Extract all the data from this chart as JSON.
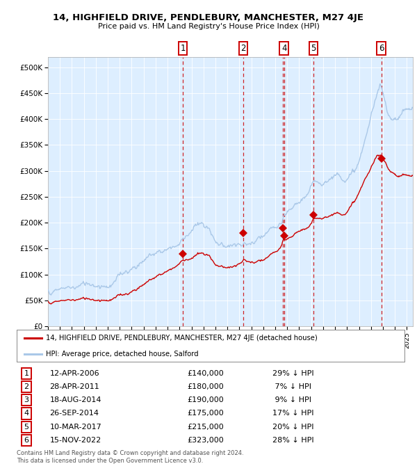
{
  "title": "14, HIGHFIELD DRIVE, PENDLEBURY, MANCHESTER, M27 4JE",
  "subtitle": "Price paid vs. HM Land Registry's House Price Index (HPI)",
  "legend_line1": "14, HIGHFIELD DRIVE, PENDLEBURY, MANCHESTER, M27 4JE (detached house)",
  "legend_line2": "HPI: Average price, detached house, Salford",
  "footer1": "Contains HM Land Registry data © Crown copyright and database right 2024.",
  "footer2": "This data is licensed under the Open Government Licence v3.0.",
  "hpi_color": "#aac8e8",
  "price_color": "#cc0000",
  "marker_color": "#cc0000",
  "vline_color": "#cc0000",
  "background_color": "#ddeeff",
  "table_entries": [
    {
      "num": "1",
      "date": "12-APR-2006",
      "price": "£140,000",
      "hpi": "29% ↓ HPI"
    },
    {
      "num": "2",
      "date": "28-APR-2011",
      "price": "£180,000",
      "hpi": " 7% ↓ HPI"
    },
    {
      "num": "3",
      "date": "18-AUG-2014",
      "price": "£190,000",
      "hpi": " 9% ↓ HPI"
    },
    {
      "num": "4",
      "date": "26-SEP-2014",
      "price": "£175,000",
      "hpi": "17% ↓ HPI"
    },
    {
      "num": "5",
      "date": "10-MAR-2017",
      "price": "£215,000",
      "hpi": "20% ↓ HPI"
    },
    {
      "num": "6",
      "date": "15-NOV-2022",
      "price": "£323,000",
      "hpi": "28% ↓ HPI"
    }
  ],
  "sale_dates_decimal": [
    2006.277,
    2011.322,
    2014.632,
    2014.737,
    2017.191,
    2022.874
  ],
  "sale_prices": [
    140000,
    180000,
    190000,
    175000,
    215000,
    323000
  ],
  "sale_labels": [
    "1",
    "2",
    "3",
    "4",
    "5",
    "6"
  ],
  "show_top_label": [
    true,
    true,
    false,
    true,
    true,
    true
  ],
  "xlim": [
    1995.0,
    2025.5
  ],
  "ylim": [
    0,
    520000
  ],
  "yticks": [
    0,
    50000,
    100000,
    150000,
    200000,
    250000,
    300000,
    350000,
    400000,
    450000,
    500000
  ],
  "ylabels": [
    "£0",
    "£50K",
    "£100K",
    "£150K",
    "£200K",
    "£250K",
    "£300K",
    "£350K",
    "£400K",
    "£450K",
    "£500K"
  ]
}
